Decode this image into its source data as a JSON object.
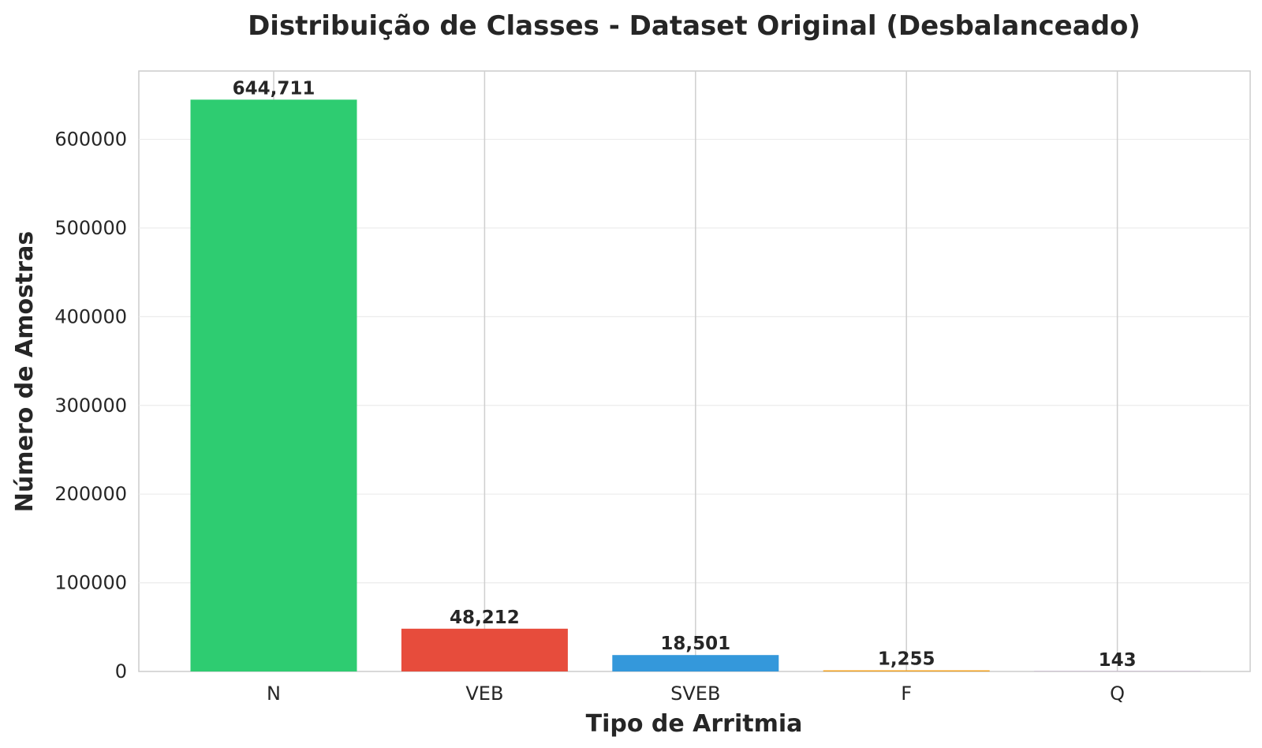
{
  "chart_data": {
    "type": "bar",
    "title": "Distribuição de Classes - Dataset Original (Desbalanceado)",
    "xlabel": "Tipo de Arritmia",
    "ylabel": "Número de Amostras",
    "categories": [
      "N",
      "VEB",
      "SVEB",
      "F",
      "Q"
    ],
    "values": [
      644711,
      48212,
      18501,
      1255,
      143
    ],
    "value_labels": [
      "644,711",
      "48,212",
      "18,501",
      "1,255",
      "143"
    ],
    "colors": [
      "#2ecc71",
      "#e74c3c",
      "#3498db",
      "#f39c12",
      "#9b59b6"
    ],
    "ylim": [
      0,
      677000
    ],
    "yticks": [
      0,
      100000,
      200000,
      300000,
      400000,
      500000,
      600000
    ],
    "ytick_labels": [
      "0",
      "100000",
      "200000",
      "300000",
      "400000",
      "500000",
      "600000"
    ],
    "grid": true,
    "legend": "none"
  }
}
